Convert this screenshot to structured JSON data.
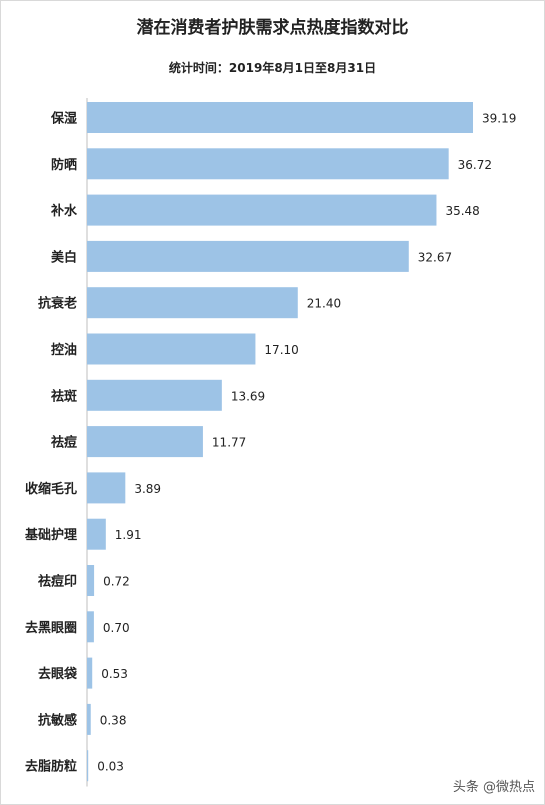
{
  "chart_data": {
    "type": "bar",
    "orientation": "horizontal",
    "title": "潜在消费者护肤需求点热度指数对比",
    "subtitle": "统计时间：2019年8月1日至8月31日",
    "categories": [
      "保湿",
      "防晒",
      "补水",
      "美白",
      "抗衰老",
      "控油",
      "祛斑",
      "祛痘",
      "收缩毛孔",
      "基础护理",
      "祛痘印",
      "去黑眼圈",
      "去眼袋",
      "抗敏感",
      "去脂肪粒"
    ],
    "values": [
      39.19,
      36.72,
      35.48,
      32.67,
      21.4,
      17.1,
      13.69,
      11.77,
      3.89,
      1.91,
      0.72,
      0.7,
      0.53,
      0.38,
      0.03
    ],
    "value_labels": [
      "39.19",
      "36.72",
      "35.48",
      "32.67",
      "21.40",
      "17.10",
      "13.69",
      "11.77",
      "3.89",
      "1.91",
      "0.72",
      "0.70",
      "0.53",
      "0.38",
      "0.03"
    ],
    "xlim": [
      0,
      40
    ],
    "grid": false,
    "legend": "none",
    "bar_color": "#9dc3e6"
  },
  "watermark": "头条 @微热点"
}
